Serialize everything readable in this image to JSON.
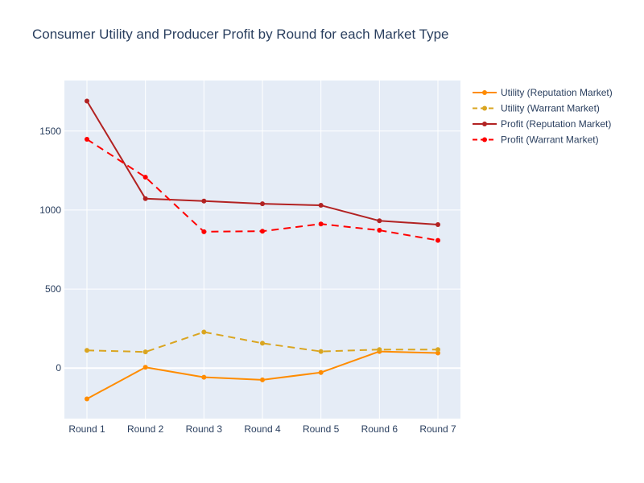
{
  "chart_data": {
    "type": "line",
    "title": "Consumer Utility and Producer Profit by Round for each Market Type",
    "xlabel": "",
    "ylabel": "",
    "categories": [
      "Round 1",
      "Round 2",
      "Round 3",
      "Round 4",
      "Round 5",
      "Round 6",
      "Round 7"
    ],
    "ylim": [
      -320,
      1820
    ],
    "yticks": [
      0,
      500,
      1000,
      1500
    ],
    "grid": true,
    "legend_position": "top-right",
    "series": [
      {
        "name": "Utility (Reputation Market)",
        "color": "#ff8c00",
        "dash": "solid",
        "values": [
          -195,
          5,
          -58,
          -75,
          -28,
          105,
          95
        ]
      },
      {
        "name": "Utility (Warrant Market)",
        "color": "#daa520",
        "dash": "dashed",
        "values": [
          112,
          102,
          228,
          157,
          105,
          117,
          117
        ]
      },
      {
        "name": "Profit (Reputation Market)",
        "color": "#b22222",
        "dash": "solid",
        "values": [
          1690,
          1072,
          1057,
          1040,
          1030,
          932,
          908
        ]
      },
      {
        "name": "Profit (Warrant Market)",
        "color": "#ff0000",
        "dash": "dashed",
        "values": [
          1448,
          1208,
          863,
          866,
          912,
          872,
          808
        ]
      }
    ]
  }
}
